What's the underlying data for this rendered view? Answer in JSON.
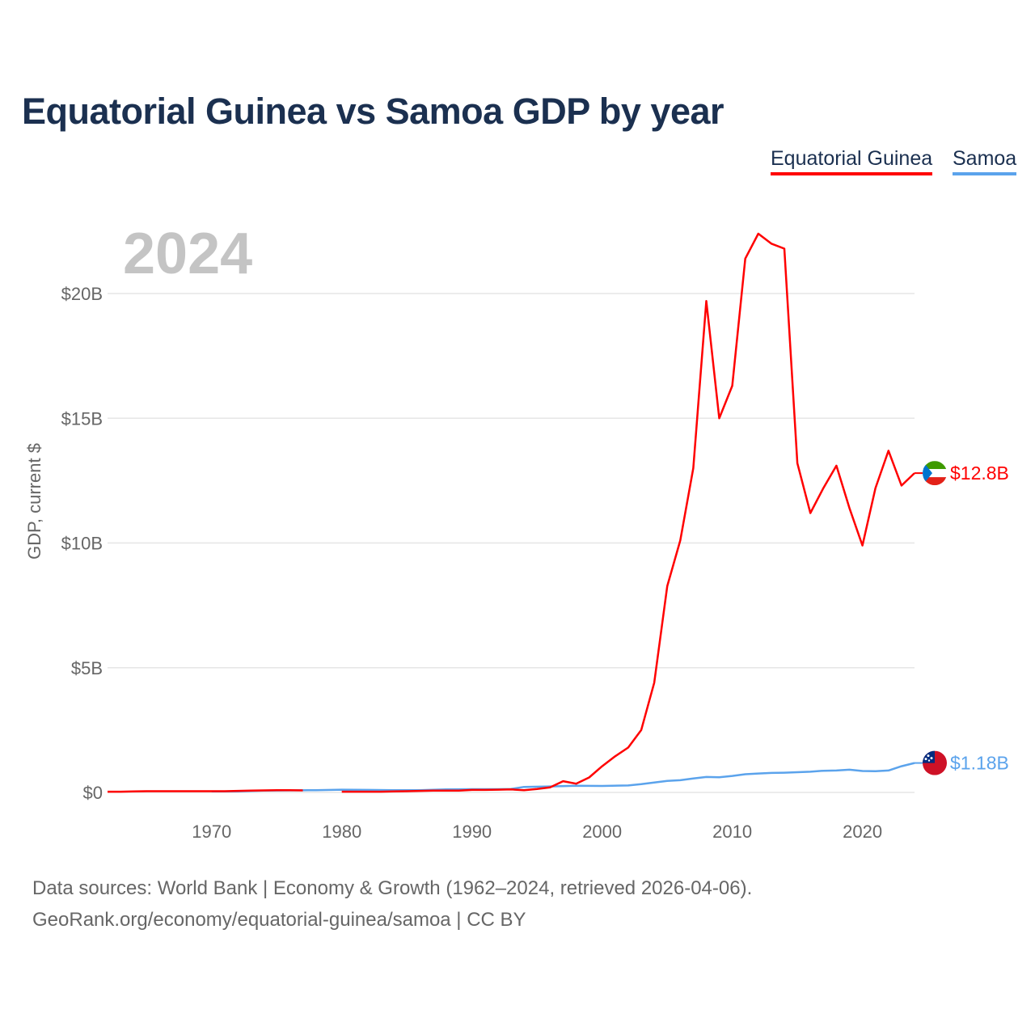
{
  "title": "Equatorial Guinea vs Samoa GDP by year",
  "footer": {
    "line1": "Data sources: World Bank | Economy & Growth (1962–2024, retrieved 2026-04-06).",
    "line2": "GeoRank.org/economy/equatorial-guinea/samoa | CC BY"
  },
  "chart_data": {
    "type": "line",
    "title": "Equatorial Guinea vs Samoa GDP by year",
    "year_label": "2024",
    "xlabel": "",
    "ylabel": "GDP, current $",
    "xlim": [
      1962,
      2024
    ],
    "ylim": [
      0,
      23
    ],
    "x_ticks": [
      1970,
      1980,
      1990,
      2000,
      2010,
      2020
    ],
    "y_ticks": [
      {
        "v": 0,
        "label": "$0"
      },
      {
        "v": 5,
        "label": "$5B"
      },
      {
        "v": 10,
        "label": "$10B"
      },
      {
        "v": 15,
        "label": "$15B"
      },
      {
        "v": 20,
        "label": "$20B"
      }
    ],
    "grid": true,
    "legend_position": "top-right",
    "series": [
      {
        "name": "Equatorial Guinea",
        "color": "#ff0000",
        "end_label": "$12.8B",
        "flag": "equatorial-guinea-flag",
        "points": [
          [
            1962,
            0.03
          ],
          [
            1963,
            0.03
          ],
          [
            1964,
            0.04
          ],
          [
            1965,
            0.05
          ],
          [
            1966,
            0.05
          ],
          [
            1967,
            0.05
          ],
          [
            1968,
            0.05
          ],
          [
            1969,
            0.05
          ],
          [
            1970,
            0.05
          ],
          [
            1971,
            0.05
          ],
          [
            1972,
            0.06
          ],
          [
            1973,
            0.07
          ],
          [
            1974,
            0.08
          ],
          [
            1975,
            0.09
          ],
          [
            1976,
            0.09
          ],
          [
            1977,
            0.08
          ],
          [
            1980,
            0.03
          ],
          [
            1981,
            0.03
          ],
          [
            1982,
            0.03
          ],
          [
            1983,
            0.03
          ],
          [
            1984,
            0.04
          ],
          [
            1985,
            0.05
          ],
          [
            1986,
            0.06
          ],
          [
            1987,
            0.07
          ],
          [
            1988,
            0.07
          ],
          [
            1989,
            0.07
          ],
          [
            1990,
            0.1
          ],
          [
            1991,
            0.1
          ],
          [
            1992,
            0.11
          ],
          [
            1993,
            0.12
          ],
          [
            1994,
            0.09
          ],
          [
            1995,
            0.14
          ],
          [
            1996,
            0.2
          ],
          [
            1997,
            0.45
          ],
          [
            1998,
            0.35
          ],
          [
            1999,
            0.6
          ],
          [
            2000,
            1.05
          ],
          [
            2001,
            1.45
          ],
          [
            2002,
            1.8
          ],
          [
            2003,
            2.5
          ],
          [
            2004,
            4.4
          ],
          [
            2005,
            8.27
          ],
          [
            2006,
            10.1
          ],
          [
            2007,
            13.0
          ],
          [
            2008,
            19.7
          ],
          [
            2009,
            15.0
          ],
          [
            2010,
            16.3
          ],
          [
            2011,
            21.4
          ],
          [
            2012,
            22.4
          ],
          [
            2013,
            22.0
          ],
          [
            2014,
            21.8
          ],
          [
            2015,
            13.2
          ],
          [
            2016,
            11.2
          ],
          [
            2017,
            12.2
          ],
          [
            2018,
            13.1
          ],
          [
            2019,
            11.4
          ],
          [
            2020,
            9.9
          ],
          [
            2021,
            12.2
          ],
          [
            2022,
            13.7
          ],
          [
            2023,
            12.3
          ],
          [
            2024,
            12.8
          ]
        ]
      },
      {
        "name": "Samoa",
        "color": "#5ba3ec",
        "end_label": "$1.18B",
        "flag": "samoa-flag",
        "points": [
          [
            1970,
            0.04
          ],
          [
            1972,
            0.04
          ],
          [
            1974,
            0.07
          ],
          [
            1976,
            0.08
          ],
          [
            1978,
            0.09
          ],
          [
            1980,
            0.11
          ],
          [
            1982,
            0.1
          ],
          [
            1984,
            0.09
          ],
          [
            1986,
            0.09
          ],
          [
            1988,
            0.12
          ],
          [
            1990,
            0.13
          ],
          [
            1992,
            0.13
          ],
          [
            1993,
            0.14
          ],
          [
            1994,
            0.22
          ],
          [
            1996,
            0.24
          ],
          [
            1998,
            0.27
          ],
          [
            2000,
            0.26
          ],
          [
            2002,
            0.28
          ],
          [
            2003,
            0.33
          ],
          [
            2004,
            0.4
          ],
          [
            2005,
            0.46
          ],
          [
            2006,
            0.49
          ],
          [
            2007,
            0.56
          ],
          [
            2008,
            0.62
          ],
          [
            2009,
            0.61
          ],
          [
            2010,
            0.66
          ],
          [
            2011,
            0.73
          ],
          [
            2012,
            0.76
          ],
          [
            2013,
            0.78
          ],
          [
            2014,
            0.79
          ],
          [
            2015,
            0.81
          ],
          [
            2016,
            0.83
          ],
          [
            2017,
            0.87
          ],
          [
            2018,
            0.88
          ],
          [
            2019,
            0.91
          ],
          [
            2020,
            0.86
          ],
          [
            2021,
            0.85
          ],
          [
            2022,
            0.88
          ],
          [
            2023,
            1.05
          ],
          [
            2024,
            1.18
          ]
        ]
      }
    ]
  }
}
